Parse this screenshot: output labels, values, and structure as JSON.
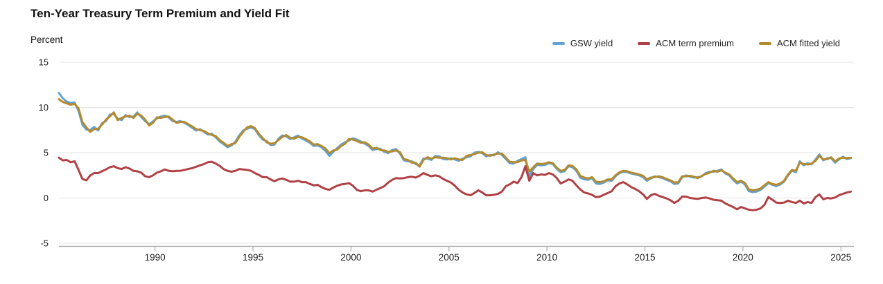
{
  "header": {
    "title": "Ten-Year Treasury Term Premium and Yield Fit",
    "unit_label": "Percent"
  },
  "chart_data": {
    "type": "line",
    "title": "Ten-Year Treasury Term Premium and Yield Fit",
    "ylabel": "Percent",
    "xlabel": "",
    "grid": "horizontal",
    "legend_position": "top-right",
    "xlim": [
      1985.1,
      2025.66
    ],
    "ylim": [
      -5,
      15
    ],
    "x_ticks": [
      1990,
      1995,
      2000,
      2005,
      2010,
      2015,
      2020,
      2025
    ],
    "x_tick_labels": [
      "1990",
      "1995",
      "2000",
      "2005",
      "2010",
      "2015",
      "2020",
      "2025"
    ],
    "y_ticks": [
      15,
      10,
      5,
      0,
      -5
    ],
    "y_tick_labels": [
      "15",
      "10",
      "5",
      "0",
      "-5"
    ],
    "colors": {
      "grid": "#e3e3e3",
      "axis": "#a9a9a9",
      "tick_text": "#1a1a1a"
    },
    "x_start": 1985.1,
    "x_step": 0.2,
    "series": [
      {
        "name": "GSW yield",
        "color": "#63a2d2",
        "values": [
          11.6,
          11.0,
          10.65,
          10.5,
          10.55,
          9.6,
          8.1,
          7.55,
          7.5,
          7.85,
          7.45,
          8.25,
          8.5,
          9.2,
          9.3,
          8.75,
          8.6,
          9.15,
          8.95,
          9.0,
          9.45,
          8.95,
          8.5,
          8.15,
          8.45,
          8.8,
          9.0,
          9.1,
          8.9,
          8.5,
          8.4,
          8.5,
          8.3,
          8.05,
          7.75,
          7.45,
          7.6,
          7.3,
          7.0,
          7.1,
          6.7,
          6.25,
          5.95,
          5.6,
          5.8,
          6.2,
          6.9,
          7.45,
          7.65,
          7.8,
          7.6,
          6.95,
          6.45,
          6.3,
          5.85,
          5.9,
          6.55,
          6.9,
          6.8,
          6.5,
          6.7,
          6.9,
          6.55,
          6.35,
          6.1,
          5.75,
          5.8,
          5.6,
          5.2,
          4.65,
          5.1,
          5.5,
          5.9,
          6.15,
          6.35,
          6.6,
          6.45,
          6.25,
          6.0,
          5.75,
          5.3,
          5.4,
          5.45,
          5.1,
          4.95,
          5.3,
          5.4,
          4.9,
          4.15,
          4.05,
          4.05,
          3.75,
          3.6,
          4.35,
          4.35,
          4.2,
          4.65,
          4.6,
          4.3,
          4.25,
          4.4,
          4.25,
          4.1,
          4.35,
          4.5,
          4.6,
          5.0,
          5.1,
          4.95,
          4.6,
          4.75,
          4.7,
          5.05,
          4.75,
          4.3,
          3.85,
          3.8,
          4.1,
          4.3,
          4.5,
          2.4,
          3.2,
          3.65,
          3.6,
          3.65,
          3.85,
          3.75,
          3.2,
          2.85,
          2.95,
          3.5,
          3.4,
          3.0,
          2.25,
          2.05,
          2.0,
          2.2,
          1.6,
          1.55,
          1.7,
          1.95,
          1.9,
          2.4,
          2.75,
          2.9,
          2.85,
          2.7,
          2.6,
          2.5,
          2.3,
          1.9,
          2.15,
          2.4,
          2.3,
          2.2,
          2.0,
          1.85,
          1.55,
          1.6,
          2.3,
          2.5,
          2.35,
          2.25,
          2.3,
          2.4,
          2.75,
          2.9,
          2.9,
          3.0,
          3.15,
          2.7,
          2.5,
          2.0,
          1.6,
          1.8,
          1.5,
          0.75,
          0.65,
          0.7,
          0.9,
          1.25,
          1.65,
          1.45,
          1.3,
          1.5,
          1.8,
          2.5,
          3.0,
          2.85,
          4.05,
          3.6,
          3.85,
          3.7,
          4.25,
          4.8,
          4.15,
          4.4,
          4.4,
          3.9,
          4.25,
          4.55,
          4.3,
          4.4
        ]
      },
      {
        "name": "ACM fitted yield",
        "color": "#b48a2e",
        "values": [
          10.9,
          10.6,
          10.45,
          10.3,
          10.4,
          9.9,
          8.4,
          7.8,
          7.3,
          7.6,
          7.65,
          8.1,
          8.65,
          9.0,
          9.45,
          8.6,
          8.85,
          9.0,
          9.1,
          8.85,
          9.3,
          9.1,
          8.65,
          8.0,
          8.3,
          8.9,
          8.85,
          8.95,
          9.0,
          8.65,
          8.3,
          8.4,
          8.4,
          8.15,
          7.9,
          7.6,
          7.5,
          7.4,
          7.15,
          6.95,
          6.85,
          6.4,
          6.1,
          5.75,
          5.95,
          6.05,
          6.75,
          7.3,
          7.8,
          7.95,
          7.7,
          7.1,
          6.6,
          6.15,
          6.0,
          6.05,
          6.4,
          6.75,
          6.95,
          6.65,
          6.55,
          6.75,
          6.7,
          6.5,
          6.25,
          5.9,
          5.95,
          5.75,
          5.45,
          4.95,
          5.25,
          5.35,
          5.75,
          6.0,
          6.5,
          6.45,
          6.3,
          6.1,
          6.15,
          5.9,
          5.45,
          5.55,
          5.3,
          5.25,
          5.1,
          5.15,
          5.25,
          5.05,
          4.3,
          4.2,
          3.9,
          3.9,
          3.45,
          4.2,
          4.5,
          4.35,
          4.5,
          4.45,
          4.45,
          4.4,
          4.25,
          4.4,
          4.25,
          4.2,
          4.65,
          4.75,
          4.85,
          5.0,
          5.05,
          4.75,
          4.65,
          4.8,
          4.9,
          4.9,
          4.45,
          4.0,
          3.95,
          3.95,
          4.15,
          4.2,
          2.9,
          3.4,
          3.8,
          3.75,
          3.8,
          3.95,
          3.85,
          3.35,
          3.0,
          3.1,
          3.6,
          3.55,
          3.15,
          2.45,
          2.25,
          2.15,
          2.3,
          1.8,
          1.75,
          1.85,
          2.05,
          2.05,
          2.5,
          2.85,
          3.0,
          2.95,
          2.8,
          2.7,
          2.6,
          2.45,
          2.05,
          2.25,
          2.3,
          2.4,
          2.3,
          2.1,
          1.95,
          1.7,
          1.75,
          2.4,
          2.4,
          2.45,
          2.35,
          2.2,
          2.45,
          2.65,
          2.8,
          3.0,
          2.9,
          3.05,
          2.8,
          2.6,
          2.15,
          1.75,
          1.9,
          1.65,
          0.95,
          0.85,
          0.9,
          1.05,
          1.4,
          1.75,
          1.55,
          1.45,
          1.6,
          1.9,
          2.6,
          3.1,
          3.0,
          3.9,
          3.75,
          3.7,
          3.8,
          4.1,
          4.65,
          4.25,
          4.3,
          4.5,
          4.05,
          4.35,
          4.45,
          4.4,
          4.45
        ]
      },
      {
        "name": "ACM term premium",
        "color": "#b04044",
        "values": [
          4.45,
          4.15,
          4.2,
          3.95,
          4.05,
          3.1,
          2.1,
          1.95,
          2.5,
          2.75,
          2.75,
          2.95,
          3.15,
          3.4,
          3.5,
          3.3,
          3.2,
          3.4,
          3.25,
          3.0,
          2.95,
          2.8,
          2.4,
          2.3,
          2.5,
          2.8,
          2.95,
          3.15,
          3.0,
          2.95,
          3.0,
          3.0,
          3.1,
          3.2,
          3.3,
          3.45,
          3.6,
          3.75,
          3.95,
          4.0,
          3.8,
          3.55,
          3.2,
          3.0,
          2.9,
          3.0,
          3.2,
          3.15,
          3.1,
          3.0,
          2.75,
          2.55,
          2.3,
          2.3,
          2.05,
          1.85,
          2.05,
          2.15,
          2.0,
          1.8,
          1.8,
          1.9,
          1.75,
          1.75,
          1.55,
          1.4,
          1.45,
          1.2,
          1.0,
          0.9,
          1.15,
          1.35,
          1.5,
          1.55,
          1.65,
          1.35,
          0.9,
          0.75,
          0.85,
          0.85,
          0.7,
          0.9,
          1.1,
          1.3,
          1.7,
          2.0,
          2.2,
          2.15,
          2.2,
          2.3,
          2.35,
          2.25,
          2.45,
          2.75,
          2.55,
          2.4,
          2.5,
          2.4,
          2.1,
          1.9,
          1.7,
          1.35,
          0.9,
          0.6,
          0.4,
          0.3,
          0.55,
          0.85,
          0.6,
          0.3,
          0.3,
          0.35,
          0.45,
          0.7,
          1.3,
          1.5,
          1.8,
          1.65,
          2.3,
          3.5,
          1.9,
          2.75,
          2.5,
          2.6,
          2.55,
          2.75,
          2.6,
          2.2,
          1.6,
          1.8,
          2.05,
          1.9,
          1.4,
          0.95,
          0.6,
          0.5,
          0.35,
          0.1,
          0.15,
          0.35,
          0.55,
          0.75,
          1.3,
          1.6,
          1.75,
          1.5,
          1.2,
          1.0,
          0.75,
          0.4,
          -0.1,
          0.3,
          0.45,
          0.25,
          0.1,
          -0.05,
          -0.25,
          -0.55,
          -0.3,
          0.15,
          0.15,
          0.0,
          -0.05,
          -0.1,
          0.0,
          0.05,
          -0.05,
          -0.2,
          -0.25,
          -0.3,
          -0.6,
          -0.8,
          -1.0,
          -1.25,
          -1.0,
          -1.15,
          -1.3,
          -1.35,
          -1.3,
          -1.15,
          -0.75,
          0.1,
          -0.2,
          -0.5,
          -0.55,
          -0.5,
          -0.3,
          -0.45,
          -0.55,
          -0.3,
          -0.6,
          -0.45,
          -0.55,
          0.1,
          0.4,
          -0.15,
          0.0,
          -0.05,
          0.05,
          0.3,
          0.45,
          0.6,
          0.7
        ]
      }
    ],
    "legend_order": [
      0,
      2,
      1
    ]
  },
  "legend": {
    "items": [
      {
        "label": "GSW yield",
        "color": "#63a2d2"
      },
      {
        "label": "ACM term premium",
        "color": "#b04044"
      },
      {
        "label": "ACM fitted yield",
        "color": "#b48a2e"
      }
    ]
  }
}
